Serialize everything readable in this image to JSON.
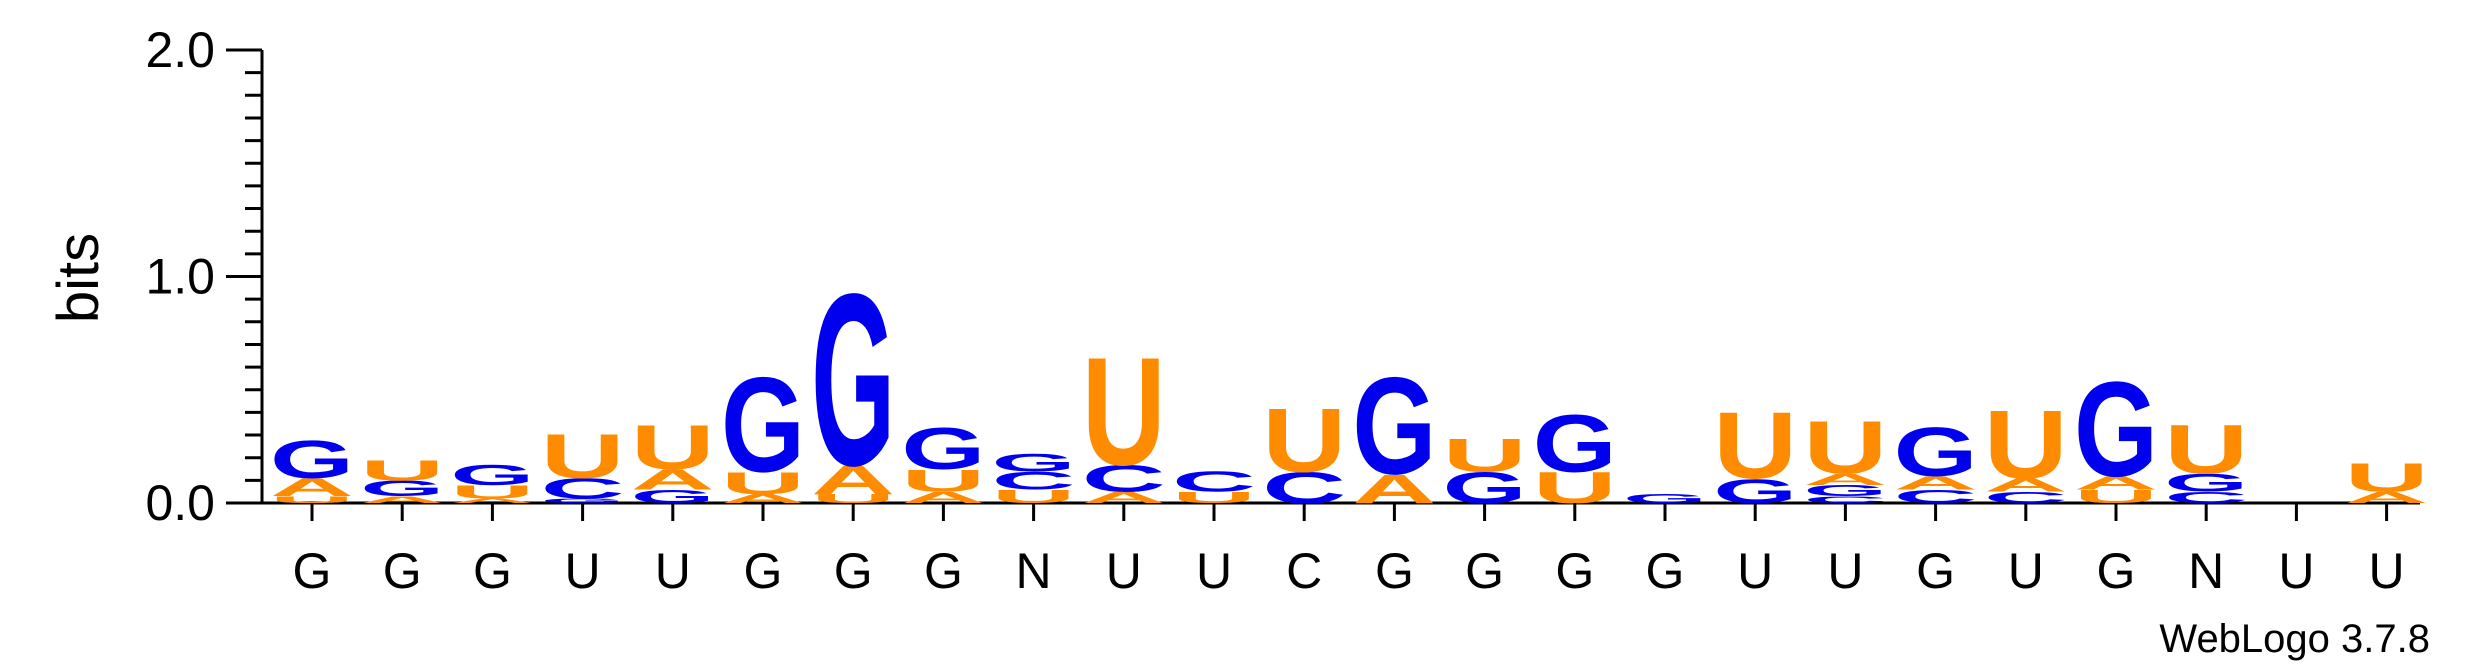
{
  "chart_data": {
    "type": "sequence-logo",
    "ylabel": "bits",
    "ylim": [
      0,
      2.0
    ],
    "yticks": [
      "0.0",
      "1.0",
      "2.0"
    ],
    "credit": "WebLogo 3.7.8",
    "colors": {
      "G": "#0000ee",
      "C": "#0000ee",
      "U": "#ff8c00",
      "A": "#ff8c00"
    },
    "positions": [
      {
        "label": "G",
        "stack": [
          [
            "U",
            0.03
          ],
          [
            "A",
            0.08
          ],
          [
            "G",
            0.17
          ]
        ]
      },
      {
        "label": "G",
        "stack": [
          [
            "A",
            0.03
          ],
          [
            "G",
            0.07
          ],
          [
            "U",
            0.09
          ]
        ]
      },
      {
        "label": "G",
        "stack": [
          [
            "A",
            0.02
          ],
          [
            "U",
            0.06
          ],
          [
            "G",
            0.09
          ]
        ]
      },
      {
        "label": "U",
        "stack": [
          [
            "G",
            0.02
          ],
          [
            "C",
            0.09
          ],
          [
            "U",
            0.2
          ]
        ]
      },
      {
        "label": "U",
        "stack": [
          [
            "G",
            0.06
          ],
          [
            "A",
            0.09
          ],
          [
            "U",
            0.2
          ]
        ]
      },
      {
        "label": "G",
        "stack": [
          [
            "A",
            0.04
          ],
          [
            "U",
            0.1
          ],
          [
            "G",
            0.43
          ]
        ]
      },
      {
        "label": "G",
        "stack": [
          [
            "U",
            0.04
          ],
          [
            "A",
            0.13
          ],
          [
            "G",
            0.78
          ]
        ]
      },
      {
        "label": "G",
        "stack": [
          [
            "A",
            0.05
          ],
          [
            "U",
            0.1
          ],
          [
            "G",
            0.19
          ]
        ]
      },
      {
        "label": "N",
        "stack": [
          [
            "U",
            0.06
          ],
          [
            "C",
            0.08
          ],
          [
            "G",
            0.08
          ]
        ]
      },
      {
        "label": "U",
        "stack": [
          [
            "A",
            0.05
          ],
          [
            "C",
            0.12
          ],
          [
            "U",
            0.49
          ]
        ]
      },
      {
        "label": "U",
        "stack": [
          [
            "U",
            0.05
          ],
          [
            "C",
            0.09
          ]
        ]
      },
      {
        "label": "C",
        "stack": [
          [
            "C",
            0.14
          ],
          [
            "U",
            0.29
          ]
        ]
      },
      {
        "label": "G",
        "stack": [
          [
            "A",
            0.13
          ],
          [
            "G",
            0.44
          ]
        ]
      },
      {
        "label": "G",
        "stack": [
          [
            "G",
            0.14
          ],
          [
            "U",
            0.15
          ]
        ]
      },
      {
        "label": "G",
        "stack": [
          [
            "U",
            0.14
          ],
          [
            "G",
            0.26
          ]
        ]
      },
      {
        "label": "G",
        "stack": [
          [
            "G",
            0.04
          ]
        ]
      },
      {
        "label": "U",
        "stack": [
          [
            "G",
            0.11
          ],
          [
            "U",
            0.3
          ]
        ]
      },
      {
        "label": "U",
        "stack": [
          [
            "C",
            0.03
          ],
          [
            "G",
            0.05
          ],
          [
            "A",
            0.05
          ],
          [
            "U",
            0.24
          ]
        ]
      },
      {
        "label": "G",
        "stack": [
          [
            "C",
            0.06
          ],
          [
            "A",
            0.06
          ],
          [
            "G",
            0.22
          ]
        ]
      },
      {
        "label": "U",
        "stack": [
          [
            "C",
            0.05
          ],
          [
            "A",
            0.06
          ],
          [
            "U",
            0.31
          ]
        ]
      },
      {
        "label": "G",
        "stack": [
          [
            "U",
            0.06
          ],
          [
            "A",
            0.06
          ],
          [
            "G",
            0.43
          ]
        ]
      },
      {
        "label": "N",
        "stack": [
          [
            "C",
            0.05
          ],
          [
            "G",
            0.08
          ],
          [
            "U",
            0.22
          ]
        ]
      },
      {
        "label": "U",
        "stack": []
      },
      {
        "label": "U",
        "stack": [
          [
            "A",
            0.05
          ],
          [
            "U",
            0.13
          ]
        ]
      }
    ]
  }
}
